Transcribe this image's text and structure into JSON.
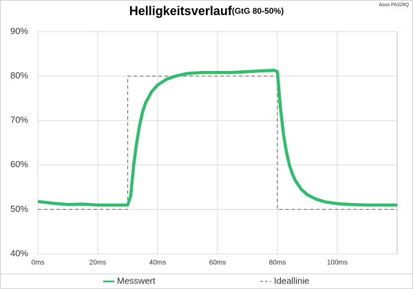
{
  "chart_data": {
    "type": "line",
    "title": "Helligkeitsverlauf",
    "subtitle": "(GtG 80-50%)",
    "annotation": "Asus PA328Q",
    "x": [
      0,
      5,
      10,
      15,
      20,
      25,
      30,
      31,
      32,
      33,
      34,
      35,
      36,
      38,
      40,
      43,
      46,
      50,
      55,
      60,
      65,
      70,
      75,
      79,
      80,
      81,
      82,
      83,
      84,
      85,
      86,
      88,
      90,
      93,
      96,
      100,
      105,
      110,
      115,
      120
    ],
    "series": [
      {
        "name": "Messwert",
        "color": "#2ebd6b",
        "dashed": false,
        "x": [
          0,
          5,
          10,
          15,
          20,
          25,
          30,
          31,
          32,
          33,
          34,
          35,
          36,
          38,
          40,
          43,
          46,
          50,
          55,
          60,
          65,
          70,
          75,
          79,
          80,
          81,
          82,
          83,
          84,
          85,
          86,
          88,
          90,
          93,
          96,
          100,
          105,
          110,
          115,
          120
        ],
        "values": [
          51.8,
          51.4,
          51.1,
          51.2,
          51,
          51,
          51,
          53,
          60,
          65,
          69,
          72,
          74,
          76.5,
          78,
          79.3,
          80,
          80.6,
          80.8,
          80.8,
          80.8,
          81,
          81.2,
          81.3,
          81,
          73,
          67,
          63,
          60,
          58,
          56.5,
          54.5,
          53.3,
          52.3,
          51.7,
          51.3,
          51.1,
          51,
          51,
          51
        ]
      },
      {
        "name": "Ideallinie",
        "color": "#777777",
        "dashed": true,
        "x": [
          0,
          30,
          30,
          80,
          80,
          120
        ],
        "values": [
          50,
          50,
          80,
          80,
          50,
          50
        ]
      }
    ],
    "xlim": [
      0,
      120
    ],
    "xticks": [
      {
        "value": 0,
        "label": "0ms"
      },
      {
        "value": 20,
        "label": "20ms"
      },
      {
        "value": 40,
        "label": "40ms"
      },
      {
        "value": 60,
        "label": "60ms"
      },
      {
        "value": 80,
        "label": "80ms"
      },
      {
        "value": 100,
        "label": "100ms"
      }
    ],
    "ylim": [
      40,
      90
    ],
    "yticks": [
      {
        "value": 40,
        "label": "40%"
      },
      {
        "value": 50,
        "label": "50%"
      },
      {
        "value": 60,
        "label": "60%"
      },
      {
        "value": 70,
        "label": "70%"
      },
      {
        "value": 80,
        "label": "80%"
      },
      {
        "value": 90,
        "label": "90%"
      }
    ],
    "grid": true,
    "legend": "bottom"
  }
}
